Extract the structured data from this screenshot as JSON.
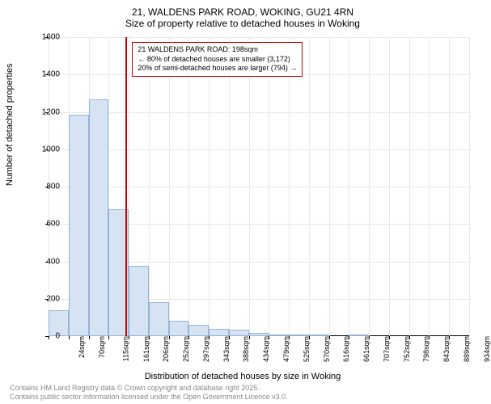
{
  "title_main": "21, WALDENS PARK ROAD, WOKING, GU21 4RN",
  "title_sub": "Size of property relative to detached houses in Woking",
  "y_axis_label": "Number of detached properties",
  "x_axis_label": "Distribution of detached houses by size in Woking",
  "chart": {
    "type": "histogram",
    "bar_fill": "#d6e3f3",
    "bar_border": "#95b3d7",
    "grid_color": "#e8e8e8",
    "ref_line_color": "#cc0000",
    "background": "#ffffff",
    "ylim": [
      0,
      1600
    ],
    "ytick_step": 200,
    "x_categories": [
      "24sqm",
      "70sqm",
      "115sqm",
      "161sqm",
      "206sqm",
      "252sqm",
      "297sqm",
      "343sqm",
      "388sqm",
      "434sqm",
      "479sqm",
      "525sqm",
      "570sqm",
      "616sqm",
      "661sqm",
      "707sqm",
      "752sqm",
      "798sqm",
      "843sqm",
      "889sqm",
      "934sqm"
    ],
    "bar_values": [
      140,
      1185,
      1265,
      680,
      375,
      180,
      82,
      60,
      40,
      35,
      18,
      10,
      8,
      5,
      0,
      3,
      0,
      0,
      0,
      0,
      0
    ],
    "ref_line_bin_index": 3,
    "ref_line_position": 0.85
  },
  "annotation": {
    "line1": "21 WALDENS PARK ROAD: 198sqm",
    "line2": "← 80% of detached houses are smaller (3,172)",
    "line3": "20% of semi-detached houses are larger (794) →"
  },
  "footer": {
    "line1": "Contains HM Land Registry data © Crown copyright and database right 2025.",
    "line2": "Contains public sector information licensed under the Open Government Licence v3.0."
  }
}
